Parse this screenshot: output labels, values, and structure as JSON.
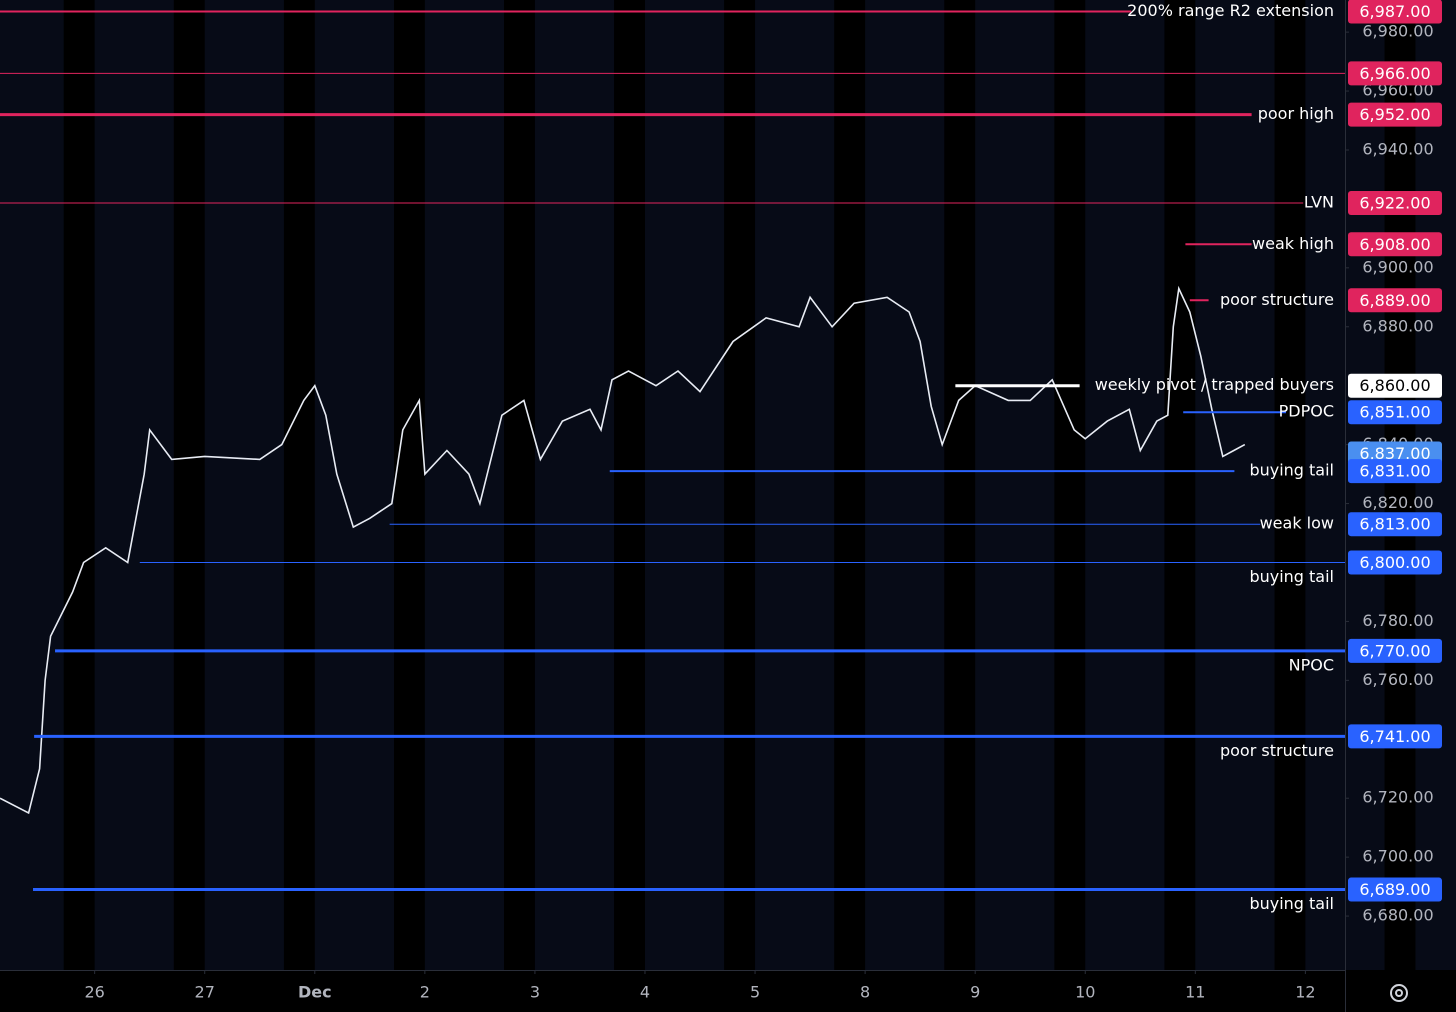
{
  "chart_data": {
    "type": "line",
    "xticks": [
      {
        "value": 0,
        "label": "26"
      },
      {
        "value": 1,
        "label": "27"
      },
      {
        "value": 2,
        "label": "Dec"
      },
      {
        "value": 3,
        "label": "2"
      },
      {
        "value": 4,
        "label": "3"
      },
      {
        "value": 5,
        "label": "4"
      },
      {
        "value": 6,
        "label": "5"
      },
      {
        "value": 7,
        "label": "8"
      },
      {
        "value": 8,
        "label": "9"
      },
      {
        "value": 9,
        "label": "10"
      },
      {
        "value": 10,
        "label": "11"
      },
      {
        "value": 11,
        "label": "12"
      }
    ],
    "xlim": [
      -0.86,
      11.36
    ],
    "ylim": [
      6661.7,
      6990.9
    ],
    "yticks": [
      {
        "value": 6980,
        "label": "6,980.00"
      },
      {
        "value": 6960,
        "label": "6,960.00"
      },
      {
        "value": 6940,
        "label": "6,940.00"
      },
      {
        "value": 6900,
        "label": "6,900.00"
      },
      {
        "value": 6880,
        "label": "6,880.00"
      },
      {
        "value": 6840,
        "label": "6,840.00"
      },
      {
        "value": 6820,
        "label": "6,820.00"
      },
      {
        "value": 6780,
        "label": "6,780.00"
      },
      {
        "value": 6760,
        "label": "6,760.00"
      },
      {
        "value": 6720,
        "label": "6,720.00"
      },
      {
        "value": 6700,
        "label": "6,700.00"
      },
      {
        "value": 6680,
        "label": "6,680.00"
      }
    ],
    "series": [
      {
        "color": "#e8ecf4",
        "x": [
          -0.86,
          -0.6,
          -0.5,
          -0.45,
          -0.4,
          -0.2,
          -0.1,
          0.1,
          0.3,
          0.45,
          0.5,
          0.7,
          1.0,
          1.5,
          1.7,
          1.9,
          2.0,
          2.1,
          2.2,
          2.35,
          2.5,
          2.7,
          2.8,
          2.95,
          3.0,
          3.2,
          3.4,
          3.5,
          3.7,
          3.9,
          4.05,
          4.25,
          4.5,
          4.6,
          4.7,
          4.85,
          5.1,
          5.3,
          5.5,
          5.8,
          6.1,
          6.4,
          6.5,
          6.7,
          6.9,
          7.2,
          7.4,
          7.5,
          7.6,
          7.7,
          7.85,
          8.0,
          8.3,
          8.5,
          8.7,
          8.9,
          9.0,
          9.2,
          9.4,
          9.5,
          9.65,
          9.75,
          9.8,
          9.85,
          9.95,
          10.05,
          10.15,
          10.25,
          10.35,
          10.45
        ],
        "values": [
          6720,
          6715,
          6730,
          6760,
          6775,
          6790,
          6800,
          6805,
          6800,
          6830,
          6845,
          6835,
          6836,
          6835,
          6840,
          6855,
          6860,
          6850,
          6830,
          6812,
          6815,
          6820,
          6845,
          6855,
          6830,
          6838,
          6830,
          6820,
          6850,
          6855,
          6835,
          6848,
          6852,
          6845,
          6862,
          6865,
          6860,
          6865,
          6858,
          6875,
          6883,
          6880,
          6890,
          6880,
          6888,
          6890,
          6885,
          6875,
          6853,
          6840,
          6855,
          6860,
          6855,
          6855,
          6862,
          6845,
          6842,
          6848,
          6852,
          6838,
          6848,
          6850,
          6880,
          6893,
          6885,
          6870,
          6852,
          6836,
          6838,
          6840
        ]
      }
    ],
    "levels": [
      {
        "value": 6987,
        "price_label": "6,987.00",
        "label": "200% range R2 extension",
        "color": "#e0245e",
        "width": 2,
        "from": -0.86,
        "label_side": "inline"
      },
      {
        "value": 6966,
        "price_label": "6,966.00",
        "color": "#e0245e",
        "width": 1,
        "from": -0.86
      },
      {
        "value": 6952,
        "price_label": "6,952.00",
        "label": "poor high",
        "color": "#e0245e",
        "width": 3,
        "from": -0.86,
        "label_side": "inline"
      },
      {
        "value": 6922,
        "price_label": "6,922.00",
        "label": "LVN",
        "color": "#e0245e",
        "width": 1,
        "from": -0.86,
        "label_side": "inline"
      },
      {
        "value": 6908,
        "price_label": "6,908.00",
        "label": "weak high",
        "color": "#e0245e",
        "width": 2,
        "from": 9.91,
        "label_side": "inline"
      },
      {
        "value": 6889,
        "price_label": "6,889.00",
        "label": "poor structure",
        "color": "#e0245e",
        "width": 2,
        "from": 9.95,
        "label_side": "inline"
      },
      {
        "value": 6860,
        "price_label": "6,860.00",
        "label": "weekly pivot / trapped buyers",
        "color": "#ffffff",
        "width": 3,
        "from": 7.82,
        "label_side": "inline"
      },
      {
        "value": 6851,
        "price_label": "6,851.00",
        "label": "PDPOC",
        "color": "#2962ff",
        "width": 2,
        "from": 9.89,
        "label_side": "inline"
      },
      {
        "value": 6837,
        "price_label": "6,837.00",
        "color": "#4a8ff0"
      },
      {
        "value": 6831,
        "price_label": "6,831.00",
        "label": "buying tail",
        "color": "#2962ff",
        "width": 2,
        "from": 4.68,
        "label_side": "inline"
      },
      {
        "value": 6813,
        "price_label": "6,813.00",
        "label": "weak low",
        "color": "#2962ff",
        "width": 1,
        "from": 2.68,
        "label_side": "inline"
      },
      {
        "value": 6800,
        "price_label": "6,800.00",
        "label": "buying tail",
        "color": "#2962ff",
        "width": 1,
        "from": 0.41,
        "label_side": "below"
      },
      {
        "value": 6770,
        "price_label": "6,770.00",
        "label": "NPOC",
        "color": "#2962ff",
        "width": 3,
        "from": -0.36,
        "label_side": "below"
      },
      {
        "value": 6741,
        "price_label": "6,741.00",
        "label": "poor structure",
        "color": "#2962ff",
        "width": 3,
        "from": -0.55,
        "label_side": "below"
      },
      {
        "value": 6689,
        "price_label": "6,689.00",
        "label": "buying tail",
        "color": "#2962ff",
        "width": 3,
        "from": -0.56,
        "label_side": "below"
      }
    ]
  }
}
